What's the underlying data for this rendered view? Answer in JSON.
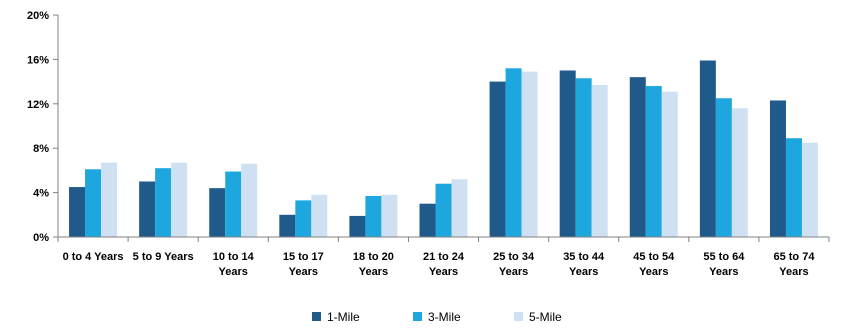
{
  "chart_data": {
    "type": "bar",
    "categories": [
      [
        "0 to 4 Years"
      ],
      [
        "5 to 9 Years"
      ],
      [
        "10 to 14",
        "Years"
      ],
      [
        "15 to 17",
        "Years"
      ],
      [
        "18 to 20",
        "Years"
      ],
      [
        "21 to 24",
        "Years"
      ],
      [
        "25 to 34",
        "Years"
      ],
      [
        "35 to 44",
        "Years"
      ],
      [
        "45 to 54",
        "Years"
      ],
      [
        "55 to 64",
        "Years"
      ],
      [
        "65 to 74",
        "Years"
      ]
    ],
    "series": [
      {
        "name": "1-Mile",
        "color": "#1f5a8b",
        "values": [
          4.5,
          5.0,
          4.4,
          2.0,
          1.9,
          3.0,
          14.0,
          15.0,
          14.4,
          15.9,
          12.3
        ]
      },
      {
        "name": "3-Mile",
        "color": "#1ea7df",
        "values": [
          6.1,
          6.2,
          5.9,
          3.3,
          3.7,
          4.8,
          15.2,
          14.3,
          13.6,
          12.5,
          8.9
        ]
      },
      {
        "name": "5-Mile",
        "color": "#cfe0f3",
        "values": [
          6.7,
          6.7,
          6.6,
          3.8,
          3.8,
          5.2,
          14.9,
          13.7,
          13.1,
          11.6,
          8.5
        ]
      }
    ],
    "ylim": [
      0,
      20
    ],
    "yticks": [
      "0%",
      "4%",
      "8%",
      "12%",
      "16%",
      "20%"
    ],
    "ytick_values": [
      0,
      4,
      8,
      12,
      16,
      20
    ],
    "grid": false,
    "legend_position": "bottom-center"
  }
}
